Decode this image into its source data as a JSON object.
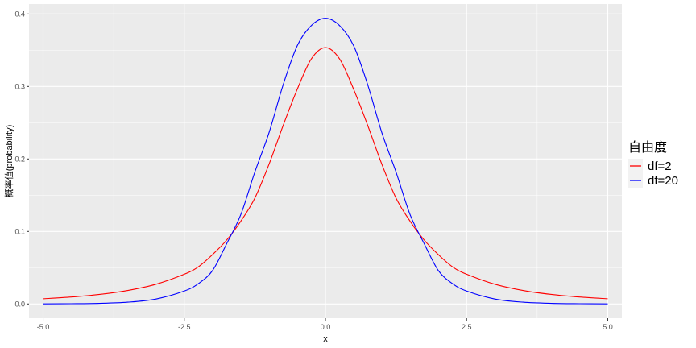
{
  "chart_data": {
    "type": "line",
    "xlabel": "x",
    "ylabel": "概率值(probability)",
    "xlim": [
      -5.25,
      5.25
    ],
    "ylim": [
      -0.0197,
      0.4137
    ],
    "x_ticks": [
      -5.0,
      -2.5,
      0.0,
      2.5,
      5.0
    ],
    "x_tick_labels": [
      "-5.0",
      "-2.5",
      "0.0",
      "2.5",
      "5.0"
    ],
    "y_ticks": [
      0.0,
      0.1,
      0.2,
      0.3,
      0.4
    ],
    "y_tick_labels": [
      "0.0",
      "0.1",
      "0.2",
      "0.3",
      "0.4"
    ],
    "grid": true,
    "legend": {
      "title": "自由度",
      "placement": "right",
      "entries": [
        "df=2",
        "df=20"
      ]
    },
    "x": [
      -5.0,
      -4.5,
      -4.0,
      -3.5,
      -3.0,
      -2.5,
      -2.25,
      -2.0,
      -1.75,
      -1.5,
      -1.25,
      -1.0,
      -0.75,
      -0.5,
      -0.25,
      0.0,
      0.25,
      0.5,
      0.75,
      1.0,
      1.25,
      1.5,
      1.75,
      2.0,
      2.25,
      2.5,
      3.0,
      3.5,
      4.0,
      4.5,
      5.0
    ],
    "series": [
      {
        "name": "df=2",
        "color": "#ff0000",
        "values": [
          0.0071,
          0.0095,
          0.0131,
          0.0186,
          0.0272,
          0.041,
          0.0512,
          0.068,
          0.088,
          0.114,
          0.146,
          0.1925,
          0.246,
          0.296,
          0.338,
          0.3536,
          0.338,
          0.296,
          0.246,
          0.1925,
          0.146,
          0.114,
          0.088,
          0.068,
          0.0512,
          0.041,
          0.0272,
          0.0186,
          0.0131,
          0.0095,
          0.0071
        ]
      },
      {
        "name": "df=20",
        "color": "#0000ff",
        "values": [
          0.0001,
          0.0003,
          0.0008,
          0.0024,
          0.0068,
          0.0178,
          0.028,
          0.046,
          0.083,
          0.123,
          0.182,
          0.236,
          0.302,
          0.356,
          0.384,
          0.394,
          0.384,
          0.356,
          0.302,
          0.236,
          0.182,
          0.123,
          0.083,
          0.046,
          0.028,
          0.0178,
          0.0068,
          0.0024,
          0.0008,
          0.0003,
          0.0001
        ]
      }
    ]
  }
}
